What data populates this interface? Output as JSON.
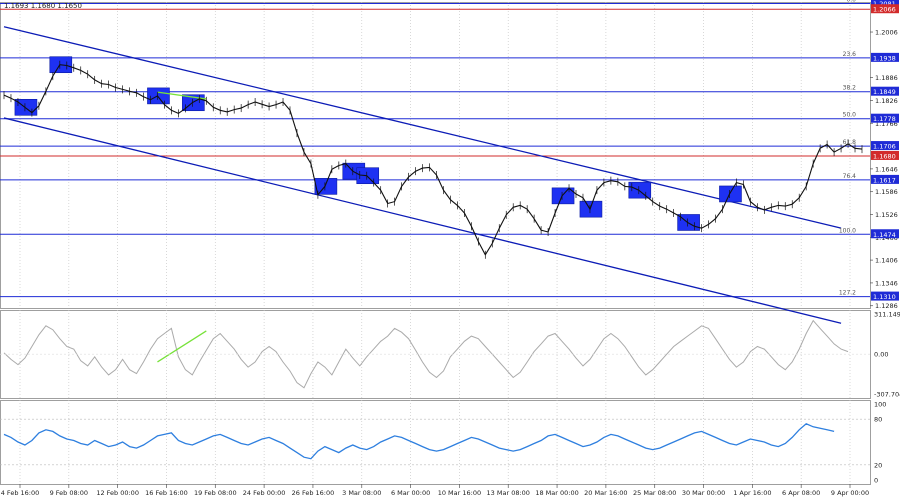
{
  "header": {
    "ohlc_text": "1.1693 1.1680 1.1650"
  },
  "chart_data": [
    {
      "type": "line",
      "title": "",
      "price_axis_ticks": [
        "1.2081",
        "1.2066",
        "1.2006",
        "1.1938",
        "1.1886",
        "1.1849",
        "1.1826",
        "1.1778",
        "1.1766",
        "1.1706",
        "1.1680",
        "1.1646",
        "1.1617",
        "1.1586",
        "1.1526",
        "1.1474",
        "1.1466",
        "1.1406",
        "1.1346",
        "1.1310",
        "1.1286"
      ],
      "ylim": [
        1.128,
        1.2085
      ],
      "levels": [
        {
          "value": 1.2081,
          "label": "1.2081",
          "fib": "0.0",
          "color": "#1f2bd6"
        },
        {
          "value": 1.2066,
          "label": "1.2066",
          "fib": "",
          "color": "#d22b2b"
        },
        {
          "value": 1.1938,
          "label": "1.1938",
          "fib": "23.6",
          "color": "#1f2bd6"
        },
        {
          "value": 1.1849,
          "label": "1.1849",
          "fib": "38.2",
          "color": "#1f2bd6"
        },
        {
          "value": 1.1778,
          "label": "1.1778",
          "fib": "50.0",
          "color": "#1f2bd6"
        },
        {
          "value": 1.1706,
          "label": "1.1706",
          "fib": "61.8",
          "color": "#1f2bd6"
        },
        {
          "value": 1.168,
          "label": "1.1680",
          "fib": "",
          "color": "#d22b2b"
        },
        {
          "value": 1.1617,
          "label": "1.1617",
          "fib": "76.4",
          "color": "#1f2bd6"
        },
        {
          "value": 1.1474,
          "label": "1.1474",
          "fib": "100.0",
          "color": "#1f2bd6"
        },
        {
          "value": 1.131,
          "label": "1.1310",
          "fib": "127.2",
          "color": "#1f2bd6"
        }
      ],
      "x_labels": [
        "4 Feb 16:00",
        "9 Feb 08:00",
        "12 Feb 00:00",
        "16 Feb 16:00",
        "19 Feb 08:00",
        "24 Feb 00:00",
        "26 Feb 16:00",
        "3 Mar 08:00",
        "6 Mar 00:00",
        "10 Mar 16:00",
        "13 Mar 08:00",
        "18 Mar 00:00",
        "20 Mar 16:00",
        "25 Mar 08:00",
        "30 Mar 00:00",
        "1 Apr 16:00",
        "6 Apr 08:00",
        "9 Apr 00:00"
      ],
      "price_series": [
        1.184,
        1.1832,
        1.1822,
        1.1808,
        1.1794,
        1.1812,
        1.185,
        1.189,
        1.192,
        1.1918,
        1.1912,
        1.1905,
        1.1895,
        1.188,
        1.187,
        1.1868,
        1.186,
        1.1855,
        1.185,
        1.1846,
        1.1836,
        1.1828,
        1.1838,
        1.1815,
        1.18,
        1.1792,
        1.1805,
        1.182,
        1.183,
        1.1825,
        1.1808,
        1.18,
        1.1796,
        1.1802,
        1.1806,
        1.1815,
        1.1822,
        1.1816,
        1.181,
        1.1815,
        1.1822,
        1.18,
        1.174,
        1.169,
        1.166,
        1.1578,
        1.16,
        1.1645,
        1.1655,
        1.166,
        1.164,
        1.163,
        1.1628,
        1.161,
        1.159,
        1.1555,
        1.156,
        1.16,
        1.1625,
        1.164,
        1.1648,
        1.165,
        1.163,
        1.159,
        1.1565,
        1.155,
        1.153,
        1.1495,
        1.1455,
        1.142,
        1.145,
        1.149,
        1.1525,
        1.1545,
        1.155,
        1.154,
        1.1515,
        1.1485,
        1.148,
        1.153,
        1.1575,
        1.1595,
        1.158,
        1.157,
        1.154,
        1.159,
        1.161,
        1.1615,
        1.1612,
        1.16,
        1.1598,
        1.159,
        1.1575,
        1.156,
        1.1548,
        1.154,
        1.153,
        1.152,
        1.1505,
        1.1495,
        1.149,
        1.15,
        1.1515,
        1.154,
        1.158,
        1.161,
        1.1605,
        1.156,
        1.1545,
        1.1538,
        1.1545,
        1.155,
        1.1548,
        1.1553,
        1.157,
        1.16,
        1.166,
        1.17,
        1.171,
        1.169,
        1.17,
        1.1712,
        1.17,
        1.1698
      ],
      "channel": [
        {
          "name": "",
          "from": [
            0,
            1.202
          ],
          "to": [
            120,
            1.149
          ]
        },
        {
          "name": "",
          "from": [
            0,
            1.178
          ],
          "to": [
            120,
            1.124
          ]
        }
      ],
      "annotation_boxes_at_index": [
        3,
        8,
        22,
        27,
        46,
        50,
        52,
        80,
        84,
        91,
        98,
        104
      ]
    },
    {
      "type": "line",
      "name": "oscillator_1",
      "ticks": [
        "311.1497",
        "0.00",
        "-307.704"
      ],
      "ylim": [
        -307.704,
        311.1497
      ],
      "values": [
        10,
        -40,
        -80,
        -30,
        60,
        150,
        220,
        190,
        120,
        60,
        40,
        -50,
        -90,
        -20,
        -100,
        -160,
        -120,
        -40,
        -120,
        -150,
        -60,
        40,
        120,
        160,
        200,
        -20,
        -120,
        -160,
        -60,
        30,
        120,
        160,
        100,
        40,
        -40,
        -100,
        -60,
        20,
        60,
        20,
        -60,
        -130,
        -220,
        -260,
        -150,
        -60,
        -100,
        -160,
        -60,
        40,
        -30,
        -90,
        -20,
        40,
        100,
        140,
        200,
        170,
        120,
        30,
        -60,
        -140,
        -180,
        -130,
        -20,
        40,
        100,
        140,
        120,
        60,
        0,
        -60,
        -120,
        -180,
        -140,
        -60,
        20,
        80,
        140,
        160,
        100,
        40,
        -30,
        -90,
        -40,
        40,
        120,
        160,
        120,
        60,
        -20,
        -100,
        -160,
        -120,
        -60,
        0,
        60,
        100,
        140,
        180,
        220,
        200,
        120,
        40,
        -40,
        -100,
        -60,
        20,
        60,
        40,
        -20,
        -80,
        -120,
        -60,
        40,
        160,
        260,
        200,
        140,
        80,
        40,
        20
      ]
    },
    {
      "type": "line",
      "name": "oscillator_2",
      "ticks": [
        "100",
        "80",
        "20",
        "0"
      ],
      "ylim": [
        0,
        100
      ],
      "values": [
        60,
        56,
        50,
        46,
        52,
        62,
        66,
        64,
        58,
        54,
        52,
        48,
        46,
        52,
        48,
        44,
        46,
        50,
        44,
        42,
        46,
        52,
        58,
        60,
        62,
        52,
        48,
        46,
        50,
        54,
        58,
        60,
        56,
        52,
        48,
        46,
        50,
        54,
        56,
        52,
        48,
        42,
        36,
        30,
        28,
        38,
        44,
        40,
        36,
        42,
        46,
        42,
        40,
        44,
        50,
        54,
        58,
        56,
        52,
        48,
        44,
        40,
        38,
        40,
        44,
        48,
        52,
        56,
        54,
        50,
        46,
        42,
        40,
        38,
        40,
        44,
        48,
        52,
        58,
        60,
        56,
        52,
        48,
        44,
        46,
        50,
        56,
        60,
        58,
        54,
        50,
        46,
        42,
        40,
        42,
        46,
        50,
        54,
        58,
        62,
        64,
        60,
        56,
        52,
        48,
        46,
        50,
        54,
        52,
        50,
        46,
        44,
        48,
        56,
        66,
        74,
        70,
        68,
        66,
        64
      ]
    }
  ],
  "styles": {
    "level_blue": "#1f2bd6",
    "level_red": "#d22b2b",
    "channel_color": "#0c1cb6",
    "box_color": "#1e31f2",
    "price_color": "#111111",
    "osc1_color": "#aaaaaa",
    "osc2_color": "#2e7fdf",
    "divergence_color": "#77e23a"
  }
}
